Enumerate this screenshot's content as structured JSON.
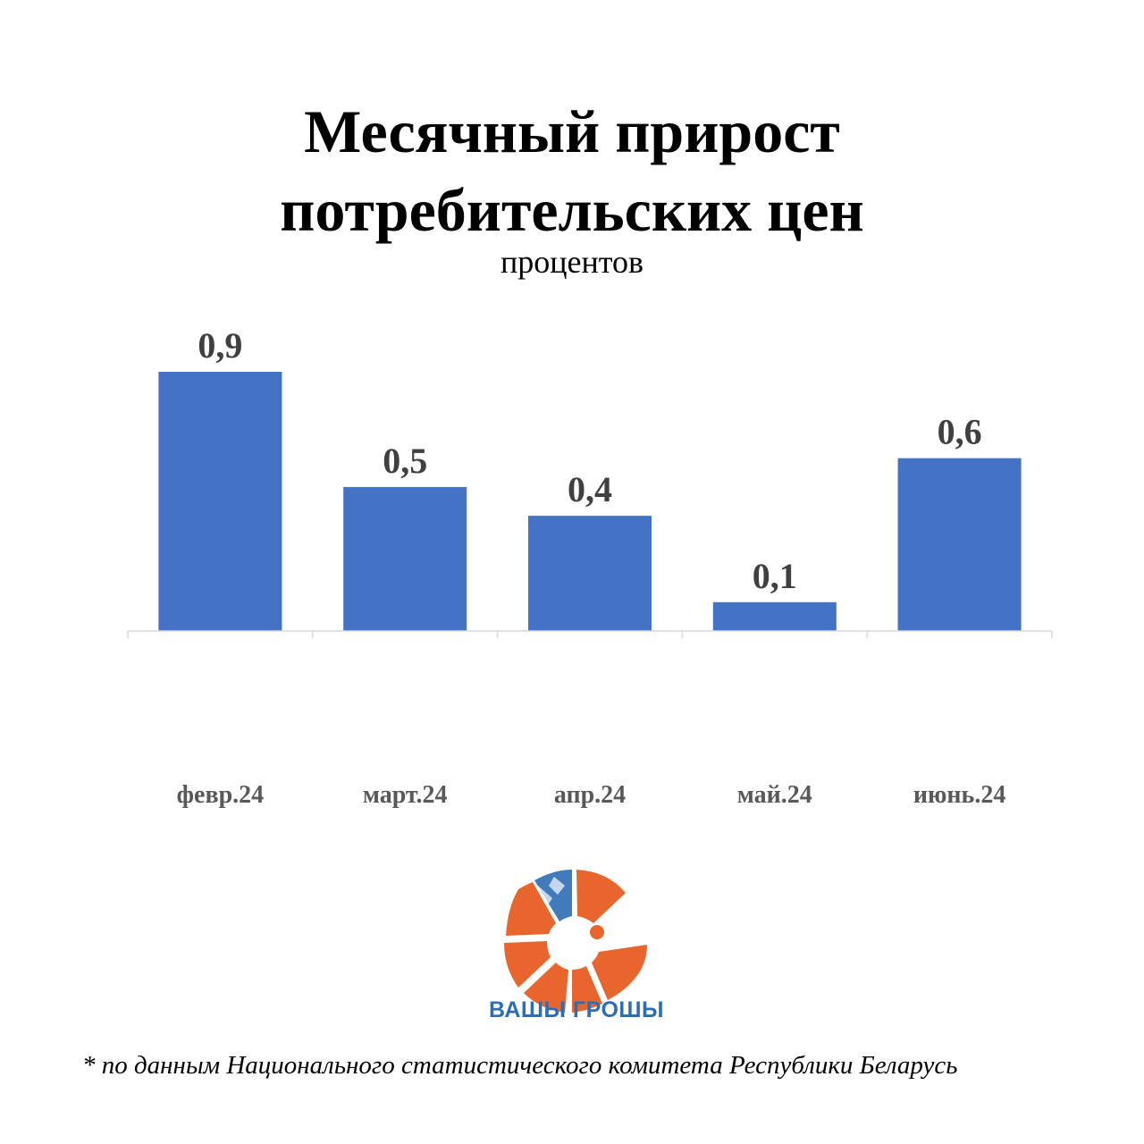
{
  "header": {
    "title_line_1": "Месячный прирост",
    "title_line_2": "потребительских цен",
    "subtitle": "процентов"
  },
  "chart_data": {
    "type": "bar",
    "categories": [
      "февр.24",
      "март.24",
      "апр.24",
      "май.24",
      "июнь.24"
    ],
    "values": [
      0.9,
      0.5,
      0.4,
      0.1,
      0.6
    ],
    "value_labels": [
      "0,9",
      "0,5",
      "0,4",
      "0,1",
      "0,6"
    ],
    "title": "Месячный прирост потребительских цен",
    "subtitle": "процентов",
    "ylim": [
      0,
      1
    ],
    "grid": false,
    "legend": "none",
    "bar_color": "#4472c4"
  },
  "logo": {
    "text": "ВАШЫ ГРОШЫ",
    "colors": {
      "orange": "#e8662e",
      "blue": "#2e6db4"
    }
  },
  "footnote": "* по данным Национального статистического комитета Республики Беларусь"
}
